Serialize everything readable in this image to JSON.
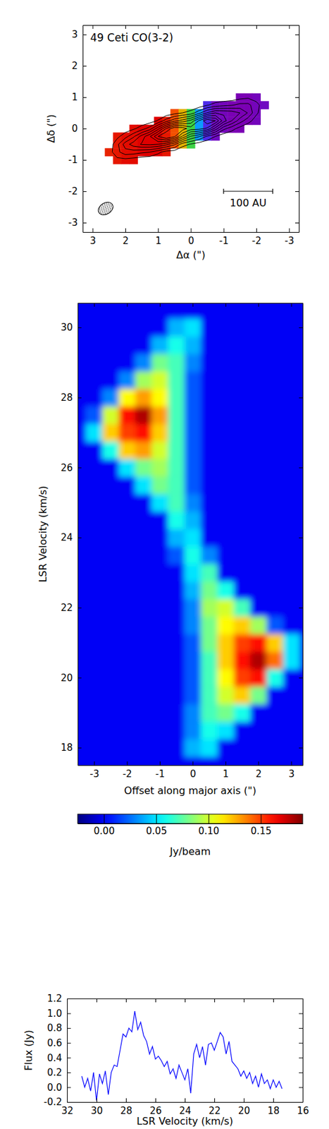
{
  "chart_data": [
    {
      "type": "contour",
      "title": "49 Ceti CO(3-2)",
      "x_label": "Δα (\")",
      "y_label": "Δδ (\")",
      "xlim": [
        3.3,
        -3.3
      ],
      "ylim": [
        -3.3,
        3.3
      ],
      "xticks": [
        3,
        2,
        1,
        0,
        -1,
        -2,
        -3
      ],
      "yticks": [
        -3,
        -2,
        -1,
        0,
        1,
        2,
        3
      ],
      "x": [
        2.75,
        2.5,
        2.25,
        2.0,
        1.75,
        1.5,
        1.25,
        1.0,
        0.75,
        0.5,
        0.25,
        0,
        -0.25,
        -0.5,
        -0.75,
        -1.0,
        -1.25,
        -1.5,
        -1.75,
        -2.0,
        -2.25,
        -2.5
      ],
      "y": [
        -1.25,
        -1.0,
        -0.75,
        -0.5,
        -0.25,
        0,
        0.25,
        0.5,
        0.75,
        1.0,
        1.25
      ],
      "intensity": [
        [
          0,
          0,
          0,
          0,
          0,
          0,
          0,
          0,
          0,
          0,
          0,
          0,
          0,
          0,
          0,
          0,
          0,
          0,
          0,
          0,
          0,
          0
        ],
        [
          0,
          0.03,
          0.07,
          0.07,
          0.05,
          0.03,
          0.02,
          0,
          0,
          0,
          0,
          0,
          0,
          0,
          0,
          0,
          0,
          0,
          0,
          0,
          0,
          0
        ],
        [
          0,
          0.05,
          0.17,
          0.26,
          0.25,
          0.22,
          0.2,
          0.13,
          0.05,
          0.04,
          0.01,
          0,
          0,
          0,
          0,
          0,
          0,
          0,
          0,
          0,
          0,
          0
        ],
        [
          0,
          0.03,
          0.17,
          0.35,
          0.45,
          0.51,
          0.52,
          0.5,
          0.43,
          0.32,
          0.14,
          0.09,
          0.04,
          0.02,
          0,
          0,
          0,
          0,
          0,
          0,
          0,
          0
        ],
        [
          0,
          0.01,
          0.07,
          0.16,
          0.28,
          0.44,
          0.59,
          0.8,
          0.92,
          0.82,
          0.58,
          0.39,
          0.31,
          0.18,
          0.1,
          0.03,
          0.01,
          0,
          0,
          0,
          0,
          0
        ],
        [
          0,
          0,
          0.01,
          0.04,
          0.08,
          0.15,
          0.25,
          0.46,
          0.71,
          0.88,
          0.85,
          0.75,
          0.74,
          0.68,
          0.46,
          0.23,
          0.14,
          0.06,
          0.02,
          0.01,
          0,
          0
        ],
        [
          0,
          0,
          0,
          0,
          0,
          0.02,
          0.04,
          0.11,
          0.25,
          0.37,
          0.44,
          0.53,
          0.71,
          0.88,
          0.8,
          0.55,
          0.4,
          0.25,
          0.14,
          0.05,
          0.01,
          0
        ],
        [
          0,
          0,
          0,
          0,
          0,
          0,
          0,
          0,
          0.02,
          0.06,
          0.1,
          0.14,
          0.27,
          0.41,
          0.5,
          0.48,
          0.46,
          0.4,
          0.29,
          0.12,
          0.03,
          0
        ],
        [
          0,
          0,
          0,
          0,
          0,
          0,
          0,
          0,
          0,
          0,
          0,
          0.01,
          0.03,
          0.09,
          0.14,
          0.17,
          0.19,
          0.23,
          0.23,
          0.13,
          0.05,
          0
        ],
        [
          0,
          0,
          0,
          0,
          0,
          0,
          0,
          0,
          0,
          0,
          0,
          0,
          0,
          0,
          0.01,
          0.02,
          0.03,
          0.06,
          0.08,
          0.06,
          0.03,
          0
        ],
        [
          0,
          0,
          0,
          0,
          0,
          0,
          0,
          0,
          0,
          0,
          0,
          0,
          0,
          0,
          0,
          0,
          0,
          0,
          0,
          0,
          0,
          0
        ]
      ],
      "contour_levels": [
        0.1,
        0.2,
        0.3,
        0.4,
        0.5,
        0.6,
        0.7,
        0.8
      ],
      "velocity": [
        [
          null,
          null,
          null,
          null,
          null,
          null,
          null,
          null,
          null,
          null,
          null,
          null,
          null,
          null,
          null,
          null,
          null,
          null,
          null,
          null,
          null,
          null
        ],
        [
          null,
          null,
          27.3,
          27.4,
          27.4,
          null,
          null,
          null,
          null,
          null,
          null,
          null,
          null,
          null,
          null,
          null,
          null,
          null,
          null,
          null,
          null,
          null
        ],
        [
          null,
          27.2,
          27.3,
          27.4,
          27.4,
          27.5,
          27.5,
          27.5,
          27.3,
          null,
          null,
          null,
          null,
          null,
          null,
          null,
          null,
          null,
          null,
          null,
          null,
          null
        ],
        [
          null,
          null,
          27.3,
          27.4,
          27.4,
          27.5,
          27.5,
          27.5,
          27.3,
          26.8,
          25.8,
          24.3,
          null,
          null,
          null,
          null,
          null,
          null,
          null,
          null,
          null,
          null
        ],
        [
          null,
          null,
          27.3,
          27.4,
          27.4,
          27.5,
          27.5,
          27.5,
          27.3,
          26.8,
          25.8,
          24.3,
          22.8,
          21.6,
          21.0,
          null,
          null,
          null,
          null,
          null,
          null,
          null
        ],
        [
          null,
          null,
          null,
          null,
          27.4,
          27.5,
          27.5,
          27.5,
          27.3,
          26.8,
          25.8,
          24.3,
          22.8,
          21.6,
          21.0,
          20.9,
          20.8,
          20.8,
          null,
          null,
          null,
          null
        ],
        [
          null,
          null,
          null,
          null,
          null,
          null,
          null,
          27.5,
          27.3,
          26.8,
          25.8,
          24.3,
          22.8,
          21.6,
          21.0,
          20.9,
          20.8,
          20.8,
          20.8,
          20.9,
          null,
          null
        ],
        [
          null,
          null,
          null,
          null,
          null,
          null,
          null,
          null,
          null,
          26.8,
          25.8,
          24.3,
          22.8,
          21.6,
          21.0,
          20.9,
          20.8,
          20.8,
          20.8,
          20.9,
          null,
          null
        ],
        [
          null,
          null,
          null,
          null,
          null,
          null,
          null,
          null,
          null,
          null,
          null,
          null,
          null,
          21.6,
          21.0,
          20.9,
          20.8,
          20.8,
          20.8,
          20.9,
          21.0,
          null
        ],
        [
          null,
          null,
          null,
          null,
          null,
          null,
          null,
          null,
          null,
          null,
          null,
          null,
          null,
          null,
          null,
          null,
          null,
          20.8,
          20.8,
          20.9,
          null,
          null
        ],
        [
          null,
          null,
          null,
          null,
          null,
          null,
          null,
          null,
          null,
          null,
          null,
          null,
          null,
          null,
          null,
          null,
          null,
          null,
          null,
          null,
          null,
          null
        ]
      ],
      "clim": [
        20.8,
        27.5
      ],
      "scale_bar": {
        "label": "100 AU",
        "x": [
          -1,
          -2.5
        ],
        "y": -2
      },
      "beam": {
        "x": 2.6,
        "y": -2.55,
        "major": 0.48,
        "minor": 0.36
      }
    },
    {
      "type": "heatmap",
      "x_label": "Offset along major axis (\")",
      "y_label": "LSR Velocity (km/s)",
      "xlim": [
        -3.5,
        3.35
      ],
      "ylim": [
        17.5,
        30.7
      ],
      "xticks": [
        -3,
        -2,
        -1,
        0,
        1,
        2,
        3
      ],
      "yticks": [
        18,
        20,
        22,
        24,
        26,
        28,
        30
      ],
      "x": [
        -3,
        -2.5,
        -2,
        -1.5,
        -1,
        -0.5,
        0,
        0.5,
        1,
        1.5,
        2,
        2.5,
        3
      ],
      "y": [
        18,
        18.5,
        19,
        19.5,
        20,
        20.5,
        21,
        21.5,
        22,
        22.5,
        23,
        23.5,
        24,
        24.5,
        25,
        25.5,
        26,
        26.5,
        27,
        27.5,
        28,
        28.5,
        29,
        29.5,
        30
      ],
      "values": [
        [
          0,
          0,
          0,
          0,
          0,
          0,
          0.04,
          0.05,
          0,
          0,
          0,
          0,
          0
        ],
        [
          0,
          0,
          0,
          0,
          0,
          0,
          0.03,
          0.06,
          0.05,
          0,
          0,
          0,
          0
        ],
        [
          0,
          0,
          0,
          0,
          0,
          0,
          0.03,
          0.07,
          0.08,
          0.06,
          0,
          0,
          0
        ],
        [
          0,
          0,
          0,
          0,
          0,
          0,
          0.02,
          0.07,
          0.1,
          0.12,
          0.08,
          0,
          0
        ],
        [
          0,
          0,
          0,
          0,
          0,
          0,
          0.02,
          0.07,
          0.11,
          0.15,
          0.16,
          0.06,
          0
        ],
        [
          0,
          0,
          0,
          0,
          0,
          0,
          0.02,
          0.07,
          0.12,
          0.16,
          0.18,
          0.14,
          0.05
        ],
        [
          0,
          0,
          0,
          0,
          0,
          0,
          0.02,
          0.08,
          0.12,
          0.15,
          0.16,
          0.12,
          0.05
        ],
        [
          0,
          0,
          0,
          0,
          0,
          0,
          0.03,
          0.08,
          0.11,
          0.12,
          0.09,
          0.02,
          0
        ],
        [
          0,
          0,
          0,
          0,
          0,
          0,
          0.03,
          0.09,
          0.1,
          0.07,
          0,
          0,
          0
        ],
        [
          0,
          0,
          0,
          0,
          0,
          0,
          0.04,
          0.08,
          0.06,
          0,
          0,
          0,
          0
        ],
        [
          0,
          0,
          0,
          0,
          0,
          0,
          0.05,
          0.07,
          0,
          0,
          0,
          0,
          0
        ],
        [
          0,
          0,
          0,
          0,
          0,
          0.02,
          0.06,
          0.03,
          0,
          0,
          0,
          0,
          0
        ],
        [
          0,
          0,
          0,
          0,
          0,
          0.04,
          0.05,
          0,
          0,
          0,
          0,
          0,
          0
        ],
        [
          0,
          0,
          0,
          0,
          0,
          0.06,
          0.04,
          0,
          0,
          0,
          0,
          0,
          0
        ],
        [
          0,
          0,
          0,
          0,
          0.05,
          0.07,
          0.03,
          0,
          0,
          0,
          0,
          0,
          0
        ],
        [
          0,
          0,
          0,
          0.05,
          0.08,
          0.07,
          0.02,
          0,
          0,
          0,
          0,
          0,
          0
        ],
        [
          0,
          0,
          0.05,
          0.08,
          0.09,
          0.07,
          0.02,
          0,
          0,
          0,
          0,
          0,
          0
        ],
        [
          0,
          0.06,
          0.12,
          0.13,
          0.1,
          0.07,
          0.02,
          0,
          0,
          0,
          0,
          0,
          0
        ],
        [
          0.05,
          0.12,
          0.15,
          0.16,
          0.12,
          0.07,
          0.02,
          0,
          0,
          0,
          0,
          0,
          0
        ],
        [
          0.02,
          0.1,
          0.16,
          0.18,
          0.13,
          0.07,
          0.02,
          0,
          0,
          0,
          0,
          0,
          0
        ],
        [
          0,
          0.03,
          0.11,
          0.13,
          0.11,
          0.07,
          0.02,
          0,
          0,
          0,
          0,
          0,
          0
        ],
        [
          0,
          0,
          0.03,
          0.09,
          0.1,
          0.07,
          0.02,
          0,
          0,
          0,
          0,
          0,
          0
        ],
        [
          0,
          0,
          0,
          0.03,
          0.08,
          0.07,
          0.03,
          0,
          0,
          0,
          0,
          0,
          0
        ],
        [
          0,
          0,
          0,
          0,
          0.04,
          0.06,
          0.04,
          0,
          0,
          0,
          0,
          0,
          0
        ],
        [
          0,
          0,
          0,
          0,
          0,
          0.04,
          0.05,
          0,
          0,
          0,
          0,
          0,
          0
        ]
      ],
      "colorbar": {
        "label": "Jy/beam",
        "range": [
          -0.025,
          0.19
        ],
        "ticks": [
          {
            "value": 0,
            "label": "0.00"
          },
          {
            "value": 0.05,
            "label": "0.05"
          },
          {
            "value": 0.1,
            "label": "0.10"
          },
          {
            "value": 0.15,
            "label": "0.15"
          }
        ]
      }
    },
    {
      "type": "line",
      "x_label": "LSR Velocity (km/s)",
      "y_label": "Flux (Jy)",
      "xlim": [
        32,
        16
      ],
      "ylim": [
        -0.2,
        1.2
      ],
      "xticks": [
        32,
        30,
        28,
        26,
        24,
        22,
        20,
        18,
        16
      ],
      "yticks": [
        -0.2,
        {
          "value": 0,
          "label": "0.0"
        },
        0.2,
        0.4,
        0.6,
        0.8,
        {
          "value": 1,
          "label": "1.0"
        },
        1.2
      ],
      "color": "#0000ff",
      "x": [
        31.0,
        30.8,
        30.6,
        30.4,
        30.2,
        30.0,
        29.8,
        29.6,
        29.4,
        29.2,
        29.0,
        28.8,
        28.6,
        28.4,
        28.2,
        28.0,
        27.8,
        27.6,
        27.4,
        27.2,
        27.0,
        26.8,
        26.6,
        26.4,
        26.2,
        26.0,
        25.8,
        25.6,
        25.4,
        25.2,
        25.0,
        24.8,
        24.6,
        24.4,
        24.2,
        24.0,
        23.8,
        23.6,
        23.4,
        23.2,
        23.0,
        22.8,
        22.6,
        22.4,
        22.2,
        22.0,
        21.8,
        21.6,
        21.4,
        21.2,
        21.0,
        20.8,
        20.6,
        20.4,
        20.2,
        20.0,
        19.8,
        19.6,
        19.4,
        19.2,
        19.0,
        18.8,
        18.6,
        18.4,
        18.2,
        18.0,
        17.8,
        17.6,
        17.4
      ],
      "values": [
        0.15,
        0.0,
        0.12,
        -0.05,
        0.2,
        -0.18,
        0.18,
        0.05,
        0.22,
        -0.1,
        0.2,
        0.3,
        0.28,
        0.5,
        0.72,
        0.68,
        0.8,
        0.75,
        1.03,
        0.78,
        0.88,
        0.7,
        0.62,
        0.45,
        0.55,
        0.38,
        0.42,
        0.36,
        0.28,
        0.35,
        0.18,
        0.25,
        0.12,
        0.3,
        0.2,
        0.1,
        0.25,
        -0.08,
        0.45,
        0.58,
        0.4,
        0.55,
        0.3,
        0.58,
        0.6,
        0.5,
        0.62,
        0.74,
        0.68,
        0.45,
        0.62,
        0.35,
        0.3,
        0.25,
        0.15,
        0.22,
        0.12,
        0.2,
        0.05,
        0.15,
        0.0,
        0.18,
        0.05,
        0.1,
        -0.02,
        0.1,
        0.0,
        0.08,
        -0.02
      ]
    }
  ]
}
